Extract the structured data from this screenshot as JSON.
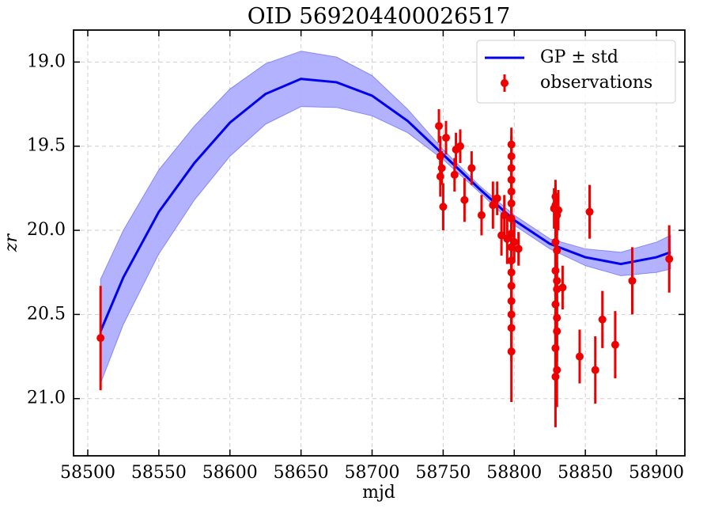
{
  "chart_data": {
    "type": "line",
    "title": "OID 569204400026517",
    "x_label": "mjd",
    "y_label": "zr",
    "xlim": [
      58490,
      58920
    ],
    "ylim": [
      18.81,
      21.34
    ],
    "y_inverted": true,
    "grid": true,
    "legend": "upper right",
    "xticks": [
      58500,
      58550,
      58600,
      58650,
      58700,
      58750,
      58800,
      58850,
      58900
    ],
    "yticks": [
      {
        "value": 19,
        "label": "19.0"
      },
      19.5,
      {
        "value": 20,
        "label": "20.0"
      },
      20.5,
      {
        "value": 21,
        "label": "21.0"
      }
    ],
    "series": [
      {
        "name": "GP ± std",
        "type": "line",
        "color": "#0000ee",
        "band_color": "#aaaaff",
        "x": [
          58509,
          58525,
          58550,
          58575,
          58600,
          58625,
          58650,
          58675,
          58700,
          58725,
          58750,
          58775,
          58800,
          58825,
          58850,
          58875,
          58900,
          58910
        ],
        "values": [
          20.6,
          20.28,
          19.89,
          19.6,
          19.36,
          19.19,
          19.1,
          19.12,
          19.2,
          19.35,
          19.55,
          19.75,
          19.94,
          20.08,
          20.16,
          20.2,
          20.16,
          20.13
        ],
        "lower": [
          20.29,
          20.0,
          19.64,
          19.38,
          19.16,
          19.01,
          18.935,
          18.97,
          19.08,
          19.28,
          19.52,
          19.73,
          19.91,
          20.05,
          20.11,
          20.13,
          20.07,
          20.03
        ],
        "upper": [
          20.91,
          20.56,
          20.14,
          19.82,
          19.56,
          19.37,
          19.265,
          19.27,
          19.32,
          19.42,
          19.58,
          19.77,
          19.97,
          20.11,
          20.21,
          20.27,
          20.25,
          20.23
        ]
      },
      {
        "name": "observations",
        "type": "errorbar",
        "color": "#ee0000",
        "x": [
          58509,
          58747,
          58748,
          58748,
          58749,
          58750,
          58752,
          58758,
          58759,
          58762,
          58765,
          58770,
          58777,
          58785,
          58788,
          58791,
          58793,
          58795,
          58798,
          58798,
          58798,
          58798,
          58798,
          58798,
          58798,
          58798,
          58798,
          58798,
          58798,
          58798,
          58798,
          58798,
          58798,
          58798,
          58800,
          58803,
          58828,
          58829,
          58829,
          58830,
          58829,
          58830,
          58829,
          58830,
          58830,
          58829,
          58830,
          58830,
          58829,
          58830,
          58829,
          58831,
          58834,
          58846,
          58853,
          58857,
          58862,
          58871,
          58883,
          58909
        ],
        "values": [
          20.64,
          19.38,
          19.56,
          19.68,
          19.63,
          19.86,
          19.45,
          19.67,
          19.52,
          19.5,
          19.82,
          19.63,
          19.91,
          19.85,
          19.81,
          20.03,
          19.91,
          20.05,
          19.49,
          19.56,
          19.63,
          19.7,
          19.77,
          19.84,
          19.93,
          20.02,
          20.1,
          20.18,
          20.25,
          20.33,
          20.42,
          20.5,
          20.58,
          20.72,
          20.07,
          20.11,
          19.87,
          19.8,
          19.85,
          19.91,
          20.07,
          20.12,
          20.24,
          20.3,
          20.35,
          20.44,
          20.52,
          20.6,
          20.7,
          20.83,
          20.87,
          19.88,
          20.34,
          20.75,
          19.89,
          20.83,
          20.53,
          20.68,
          20.3,
          20.17
        ],
        "errors": [
          0.31,
          0.1,
          0.12,
          0.12,
          0.1,
          0.14,
          0.1,
          0.1,
          0.1,
          0.1,
          0.13,
          0.1,
          0.12,
          0.14,
          0.1,
          0.12,
          0.12,
          0.15,
          0.1,
          0.12,
          0.12,
          0.14,
          0.15,
          0.14,
          0.15,
          0.16,
          0.15,
          0.16,
          0.16,
          0.18,
          0.2,
          0.2,
          0.2,
          0.3,
          0.12,
          0.1,
          0.12,
          0.1,
          0.12,
          0.12,
          0.14,
          0.14,
          0.15,
          0.16,
          0.16,
          0.16,
          0.18,
          0.18,
          0.2,
          0.22,
          0.3,
          0.12,
          0.13,
          0.16,
          0.16,
          0.2,
          0.17,
          0.2,
          0.2,
          0.2
        ]
      }
    ]
  }
}
